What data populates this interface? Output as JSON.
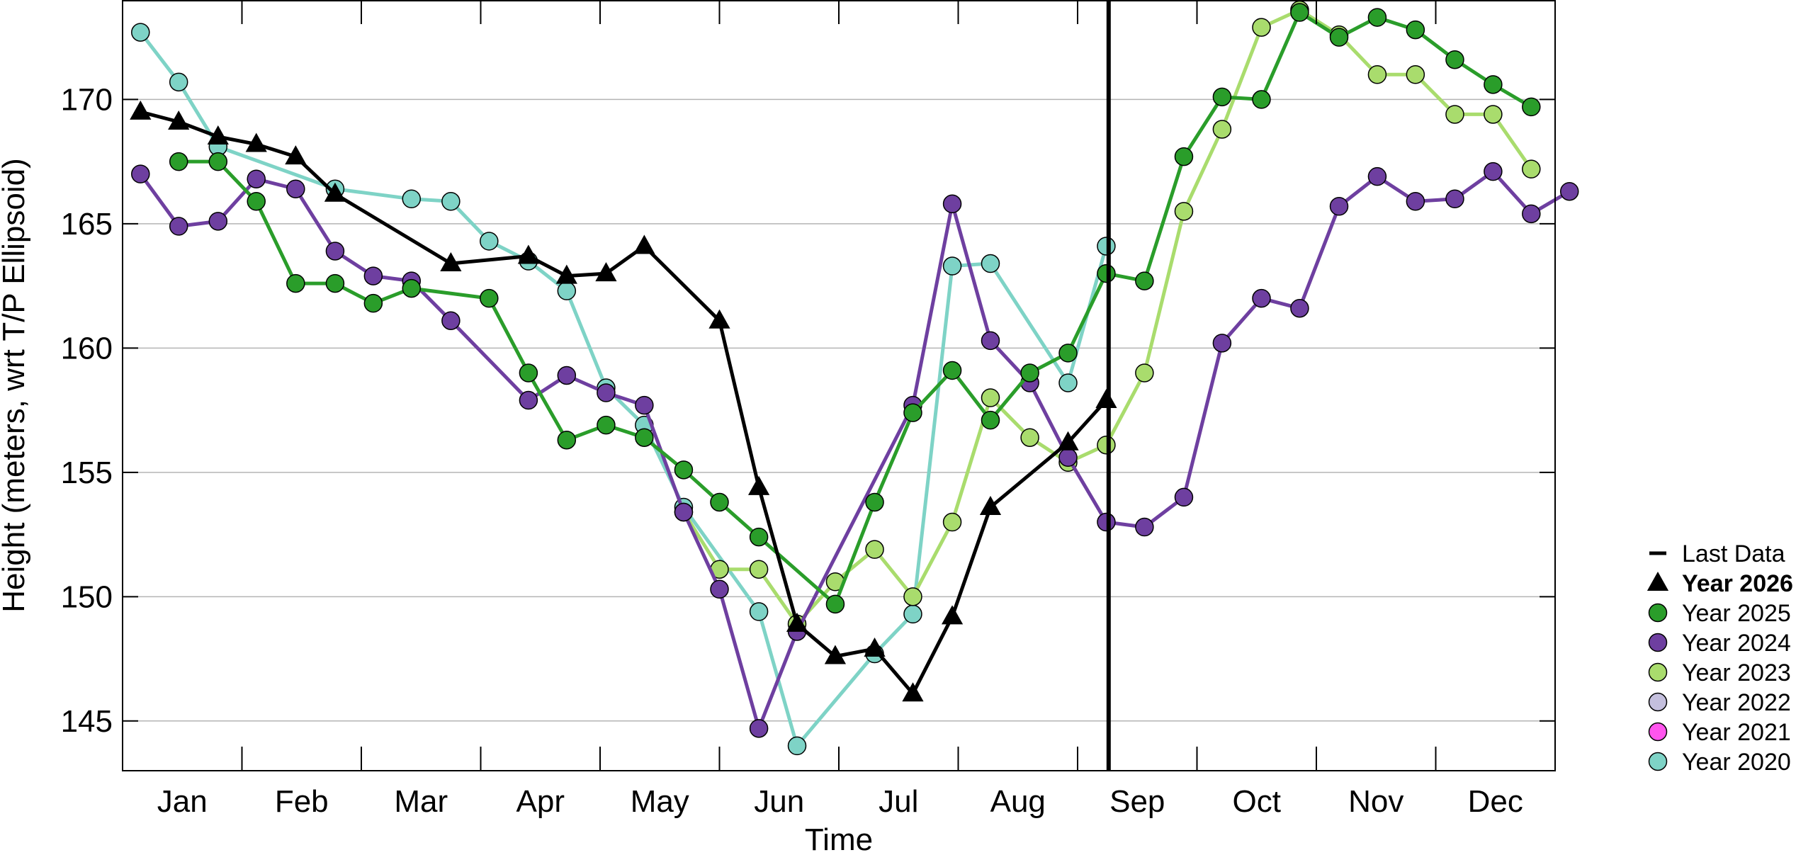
{
  "chart_data": {
    "type": "line",
    "xlabel": "Time",
    "ylabel": "Height (meters, wrt T/P Ellipsoid)",
    "ylim": [
      143,
      174
    ],
    "xlim": [
      0,
      12
    ],
    "yticks": [
      145,
      150,
      155,
      160,
      165,
      170
    ],
    "month_labels": [
      "Jan",
      "Feb",
      "Mar",
      "Apr",
      "May",
      "Jun",
      "Jul",
      "Aug",
      "Sep",
      "Oct",
      "Nov",
      "Dec"
    ],
    "grid": "horizontal",
    "legend_placement": "right",
    "last_data": {
      "label": "Last Data",
      "x": 8.26
    },
    "series": [
      {
        "name": "Year 2020",
        "color": "#7ed3c6",
        "marker": "circle",
        "points": [
          [
            0.15,
            172.7
          ],
          [
            0.47,
            170.7
          ],
          [
            0.8,
            168.1
          ],
          [
            1.78,
            166.4
          ],
          [
            2.42,
            166.0
          ],
          [
            2.75,
            165.9
          ],
          [
            3.07,
            164.3
          ],
          [
            3.4,
            163.5
          ],
          [
            3.72,
            162.3
          ],
          [
            4.05,
            158.4
          ],
          [
            4.37,
            156.9
          ],
          [
            4.7,
            153.6
          ],
          [
            5.33,
            149.4
          ],
          [
            5.65,
            144.0
          ],
          [
            6.3,
            147.7
          ],
          [
            6.62,
            149.3
          ],
          [
            6.95,
            163.3
          ],
          [
            7.27,
            163.4
          ],
          [
            7.92,
            158.6
          ],
          [
            8.24,
            164.1
          ]
        ]
      },
      {
        "name": "Year 2021",
        "color": "#ff55ee",
        "marker": "circle",
        "points": []
      },
      {
        "name": "Year 2022",
        "color": "#c4bfdd",
        "marker": "circle",
        "points": []
      },
      {
        "name": "Year 2023",
        "color": "#a9dc6d",
        "marker": "circle",
        "points": [
          [
            4.7,
            153.4
          ],
          [
            5.0,
            151.1
          ],
          [
            5.33,
            151.1
          ],
          [
            5.65,
            148.9
          ],
          [
            5.97,
            150.6
          ],
          [
            6.3,
            151.9
          ],
          [
            6.62,
            150.0
          ],
          [
            6.95,
            153.0
          ],
          [
            7.27,
            158.0
          ],
          [
            7.6,
            156.4
          ],
          [
            7.92,
            155.4
          ],
          [
            8.24,
            156.1
          ],
          [
            8.56,
            159.0
          ],
          [
            8.89,
            165.5
          ],
          [
            9.21,
            168.8
          ],
          [
            9.54,
            172.9
          ],
          [
            9.86,
            173.6
          ],
          [
            10.19,
            172.6
          ],
          [
            10.51,
            171.0
          ],
          [
            10.83,
            171.0
          ],
          [
            11.16,
            169.4
          ],
          [
            11.48,
            169.4
          ],
          [
            11.8,
            167.2
          ]
        ]
      },
      {
        "name": "Year 2024",
        "color": "#6e3fa0",
        "marker": "circle",
        "points": [
          [
            0.15,
            167.0
          ],
          [
            0.47,
            164.9
          ],
          [
            0.8,
            165.1
          ],
          [
            1.12,
            166.8
          ],
          [
            1.45,
            166.4
          ],
          [
            1.78,
            163.9
          ],
          [
            2.1,
            162.9
          ],
          [
            2.42,
            162.7
          ],
          [
            2.75,
            161.1
          ],
          [
            3.4,
            157.9
          ],
          [
            3.72,
            158.9
          ],
          [
            4.05,
            158.2
          ],
          [
            4.37,
            157.7
          ],
          [
            4.7,
            153.4
          ],
          [
            5.0,
            150.3
          ],
          [
            5.33,
            144.7
          ],
          [
            5.65,
            148.6
          ],
          [
            6.62,
            157.7
          ],
          [
            6.95,
            165.8
          ],
          [
            7.27,
            160.3
          ],
          [
            7.6,
            158.6
          ],
          [
            7.92,
            155.6
          ],
          [
            8.24,
            153.0
          ],
          [
            8.56,
            152.8
          ],
          [
            8.89,
            154.0
          ],
          [
            9.21,
            160.2
          ],
          [
            9.54,
            162.0
          ],
          [
            9.86,
            161.6
          ],
          [
            10.19,
            165.7
          ],
          [
            10.51,
            166.9
          ],
          [
            10.83,
            165.9
          ],
          [
            11.16,
            166.0
          ],
          [
            11.48,
            167.1
          ],
          [
            11.8,
            165.4
          ],
          [
            12.12,
            166.3
          ]
        ]
      },
      {
        "name": "Year 2025",
        "color": "#2a9d2a",
        "marker": "circle",
        "points": [
          [
            0.47,
            167.5
          ],
          [
            0.8,
            167.5
          ],
          [
            1.12,
            165.9
          ],
          [
            1.45,
            162.6
          ],
          [
            1.78,
            162.6
          ],
          [
            2.1,
            161.8
          ],
          [
            2.42,
            162.4
          ],
          [
            3.07,
            162.0
          ],
          [
            3.4,
            159.0
          ],
          [
            3.72,
            156.3
          ],
          [
            4.05,
            156.9
          ],
          [
            4.37,
            156.4
          ],
          [
            4.7,
            155.1
          ],
          [
            5.0,
            153.8
          ],
          [
            5.33,
            152.4
          ],
          [
            5.97,
            149.7
          ],
          [
            6.3,
            153.8
          ],
          [
            6.62,
            157.4
          ],
          [
            6.95,
            159.1
          ],
          [
            7.27,
            157.1
          ],
          [
            7.6,
            159.0
          ],
          [
            7.92,
            159.8
          ],
          [
            8.24,
            163.0
          ],
          [
            8.56,
            162.7
          ],
          [
            8.89,
            167.7
          ],
          [
            9.21,
            170.1
          ],
          [
            9.54,
            170.0
          ],
          [
            9.86,
            173.5
          ],
          [
            10.19,
            172.5
          ],
          [
            10.51,
            173.3
          ],
          [
            10.83,
            172.8
          ],
          [
            11.16,
            171.6
          ],
          [
            11.48,
            170.6
          ],
          [
            11.8,
            169.7
          ]
        ]
      },
      {
        "name": "Year 2026",
        "color": "#000000",
        "marker": "triangle",
        "points": [
          [
            0.15,
            169.5
          ],
          [
            0.47,
            169.1
          ],
          [
            0.8,
            168.5
          ],
          [
            1.12,
            168.2
          ],
          [
            1.45,
            167.7
          ],
          [
            1.78,
            166.2
          ],
          [
            2.75,
            163.4
          ],
          [
            3.4,
            163.7
          ],
          [
            3.72,
            162.9
          ],
          [
            4.05,
            163.0
          ],
          [
            4.37,
            164.1
          ],
          [
            5.0,
            161.1
          ],
          [
            5.33,
            154.4
          ],
          [
            5.65,
            148.9
          ],
          [
            5.97,
            147.6
          ],
          [
            6.3,
            147.9
          ],
          [
            6.62,
            146.1
          ],
          [
            6.95,
            149.2
          ],
          [
            7.27,
            153.6
          ],
          [
            7.92,
            156.2
          ],
          [
            8.24,
            157.9
          ]
        ]
      }
    ],
    "legend": [
      {
        "label": "Last Data",
        "symbol": "dash",
        "color": "#000000",
        "bold": false
      },
      {
        "label": "Year 2026",
        "symbol": "triangle",
        "color": "#000000",
        "bold": true
      },
      {
        "label": "Year 2025",
        "symbol": "circle",
        "color": "#2a9d2a",
        "bold": false
      },
      {
        "label": "Year 2024",
        "symbol": "circle",
        "color": "#6e3fa0",
        "bold": false
      },
      {
        "label": "Year 2023",
        "symbol": "circle",
        "color": "#a9dc6d",
        "bold": false
      },
      {
        "label": "Year 2022",
        "symbol": "circle",
        "color": "#c4bfdd",
        "bold": false
      },
      {
        "label": "Year 2021",
        "symbol": "circle",
        "color": "#ff55ee",
        "bold": false
      },
      {
        "label": "Year 2020",
        "symbol": "circle",
        "color": "#7ed3c6",
        "bold": false
      }
    ]
  }
}
